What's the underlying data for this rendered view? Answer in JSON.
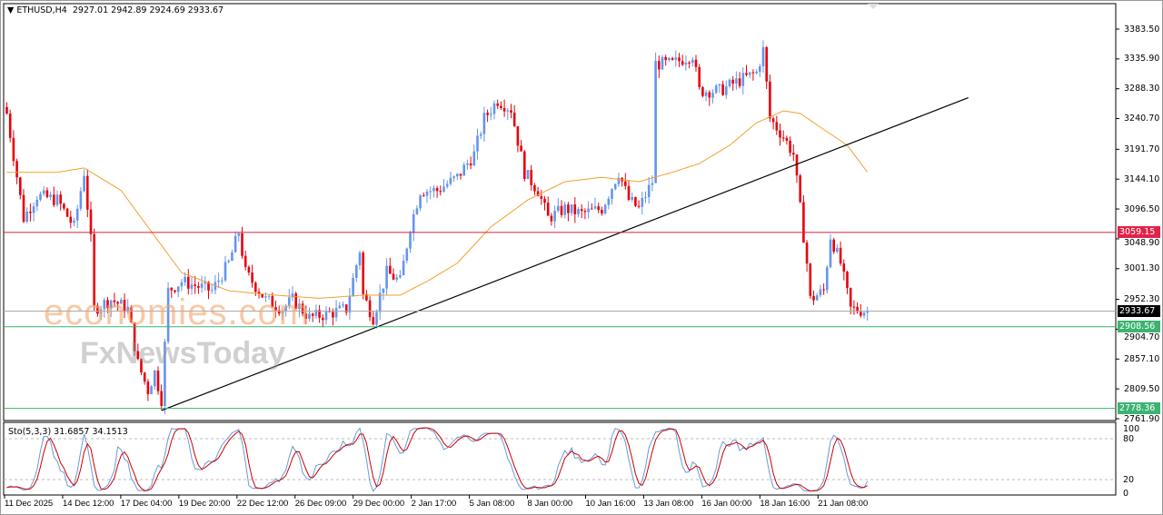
{
  "header": {
    "symbol": "ETHUSD,H4",
    "ohlc": "2927.01 2942.89 2924.69 2933.67"
  },
  "indicator": {
    "label": "Sto(5,3,3) 31.6857 34.1513",
    "levels": [
      "100",
      "80",
      "20",
      "0"
    ]
  },
  "watermark": {
    "logo1": "economies.com",
    "logo2": "FxNewsToday"
  },
  "colors": {
    "bull": "#6495ED",
    "bear": "#E8000B",
    "ma": "#F0A030",
    "trend": "#000000",
    "resistance": "#D0243C",
    "support": "#3CB371",
    "current": "#000000",
    "stoch_main": "#6A9BD8",
    "stoch_signal": "#CC0000"
  },
  "chart_data": {
    "type": "candlestick",
    "price_ticks": [
      "3383.50",
      "3335.90",
      "3288.30",
      "3240.70",
      "3191.70",
      "3144.10",
      "3096.50",
      "3048.90",
      "3001.30",
      "2952.30",
      "2904.70",
      "2857.10",
      "2809.50",
      "2761.90"
    ],
    "time_ticks": [
      "11 Dec 2025",
      "14 Dec 12:00",
      "17 Dec 04:00",
      "19 Dec 20:00",
      "22 Dec 12:00",
      "26 Dec 09:00",
      "29 Dec 00:00",
      "2 Jan 17:00",
      "5 Jan 08:00",
      "8 Jan 00:00",
      "10 Jan 16:00",
      "13 Jan 08:00",
      "16 Jan 00:00",
      "18 Jan 16:00",
      "21 Jan 08:00"
    ],
    "ylim": [
      2761.9,
      3383.5
    ],
    "close_path": [
      [
        0,
        3249
      ],
      [
        5,
        3082
      ],
      [
        9,
        3118
      ],
      [
        15,
        3111
      ],
      [
        20,
        3068
      ],
      [
        23,
        3155
      ],
      [
        25,
        3046
      ],
      [
        26,
        2937
      ],
      [
        31,
        2952
      ],
      [
        36,
        2937
      ],
      [
        39,
        2850
      ],
      [
        42,
        2807
      ],
      [
        44,
        2836
      ],
      [
        46,
        2793
      ],
      [
        48,
        2966
      ],
      [
        52,
        2981
      ],
      [
        61,
        2966
      ],
      [
        66,
        3010
      ],
      [
        69,
        3060
      ],
      [
        71,
        2995
      ],
      [
        77,
        2952
      ],
      [
        82,
        2937
      ],
      [
        85,
        2952
      ],
      [
        90,
        2923
      ],
      [
        96,
        2930
      ],
      [
        101,
        2937
      ],
      [
        105,
        3031
      ],
      [
        106,
        2959
      ],
      [
        109,
        2923
      ],
      [
        113,
        2995
      ],
      [
        117,
        2981
      ],
      [
        120,
        3068
      ],
      [
        123,
        3126
      ],
      [
        128,
        3126
      ],
      [
        134,
        3147
      ],
      [
        139,
        3184
      ],
      [
        142,
        3241
      ],
      [
        146,
        3270
      ],
      [
        150,
        3256
      ],
      [
        154,
        3155
      ],
      [
        158,
        3126
      ],
      [
        161,
        3082
      ],
      [
        166,
        3097
      ],
      [
        171,
        3089
      ],
      [
        177,
        3097
      ],
      [
        182,
        3155
      ],
      [
        185,
        3111
      ],
      [
        188,
        3097
      ],
      [
        192,
        3140
      ],
      [
        193,
        3328
      ],
      [
        198,
        3328
      ],
      [
        204,
        3343
      ],
      [
        206,
        3285
      ],
      [
        212,
        3285
      ],
      [
        217,
        3299
      ],
      [
        223,
        3314
      ],
      [
        225,
        3350
      ],
      [
        227,
        3241
      ],
      [
        231,
        3212
      ],
      [
        234,
        3184
      ],
      [
        236,
        3097
      ],
      [
        238,
        3010
      ],
      [
        239,
        2952
      ],
      [
        243,
        2966
      ],
      [
        245,
        3053
      ],
      [
        248,
        3010
      ],
      [
        251,
        2937
      ],
      [
        256,
        2933.67
      ]
    ],
    "moving_average": [
      [
        0,
        3155
      ],
      [
        15,
        3155
      ],
      [
        23,
        3162
      ],
      [
        34,
        3126
      ],
      [
        44,
        3053
      ],
      [
        52,
        2995
      ],
      [
        66,
        2966
      ],
      [
        80,
        2959
      ],
      [
        93,
        2954
      ],
      [
        106,
        2959
      ],
      [
        117,
        2959
      ],
      [
        125,
        2981
      ],
      [
        134,
        3010
      ],
      [
        144,
        3068
      ],
      [
        155,
        3111
      ],
      [
        166,
        3140
      ],
      [
        177,
        3147
      ],
      [
        188,
        3140
      ],
      [
        198,
        3155
      ],
      [
        206,
        3169
      ],
      [
        215,
        3198
      ],
      [
        223,
        3234
      ],
      [
        231,
        3253
      ],
      [
        236,
        3249
      ],
      [
        242,
        3227
      ],
      [
        250,
        3198
      ],
      [
        256,
        3155
      ]
    ],
    "trendline": [
      [
        46,
        2775
      ],
      [
        286,
        3274
      ]
    ],
    "hlines": [
      {
        "price": 3059.15,
        "label": "3059.15",
        "kind": "resistance"
      },
      {
        "price": 2933.67,
        "label": "2933.67",
        "kind": "current"
      },
      {
        "price": 2908.56,
        "label": "2908.56",
        "kind": "support"
      },
      {
        "price": 2778.36,
        "label": "2778.36",
        "kind": "support"
      }
    ],
    "stochastic": {
      "k": 5,
      "d": 3,
      "slowing": 3,
      "levels": [
        80,
        20
      ],
      "ylim": [
        0,
        100
      ]
    }
  }
}
